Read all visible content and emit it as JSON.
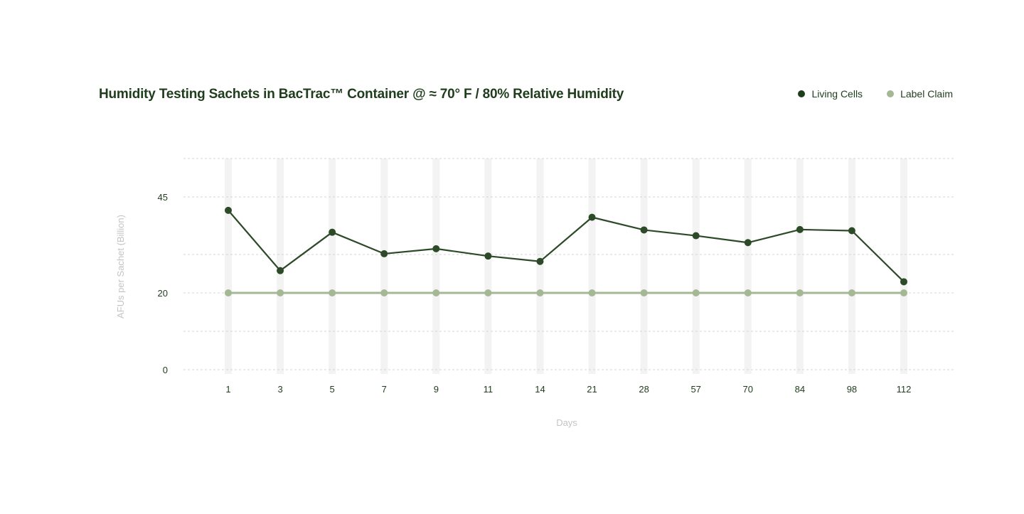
{
  "chart_data": {
    "type": "line",
    "title": "Humidity Testing Sachets in BacTrac™ Container @ ≈ 70° F / 80% Relative Humidity",
    "xlabel": "Days",
    "ylabel": "AFUs per Sachet (Billion)",
    "categories": [
      "1",
      "3",
      "5",
      "7",
      "9",
      "11",
      "14",
      "21",
      "28",
      "57",
      "70",
      "84",
      "98",
      "112"
    ],
    "yticks": [
      0,
      20,
      45
    ],
    "ylim": [
      0,
      55
    ],
    "grid": true,
    "legend_position": "top-right",
    "series": [
      {
        "name": "Living Cells",
        "color": "#2d4a28",
        "values": [
          41.5,
          25.8,
          35.8,
          30.2,
          31.5,
          29.6,
          28.2,
          39.7,
          36.4,
          34.9,
          33.1,
          36.5,
          36.2,
          22.9
        ]
      },
      {
        "name": "Label Claim",
        "color": "#a4b894",
        "values": [
          20,
          20,
          20,
          20,
          20,
          20,
          20,
          20,
          20,
          20,
          20,
          20,
          20,
          20
        ]
      }
    ]
  }
}
